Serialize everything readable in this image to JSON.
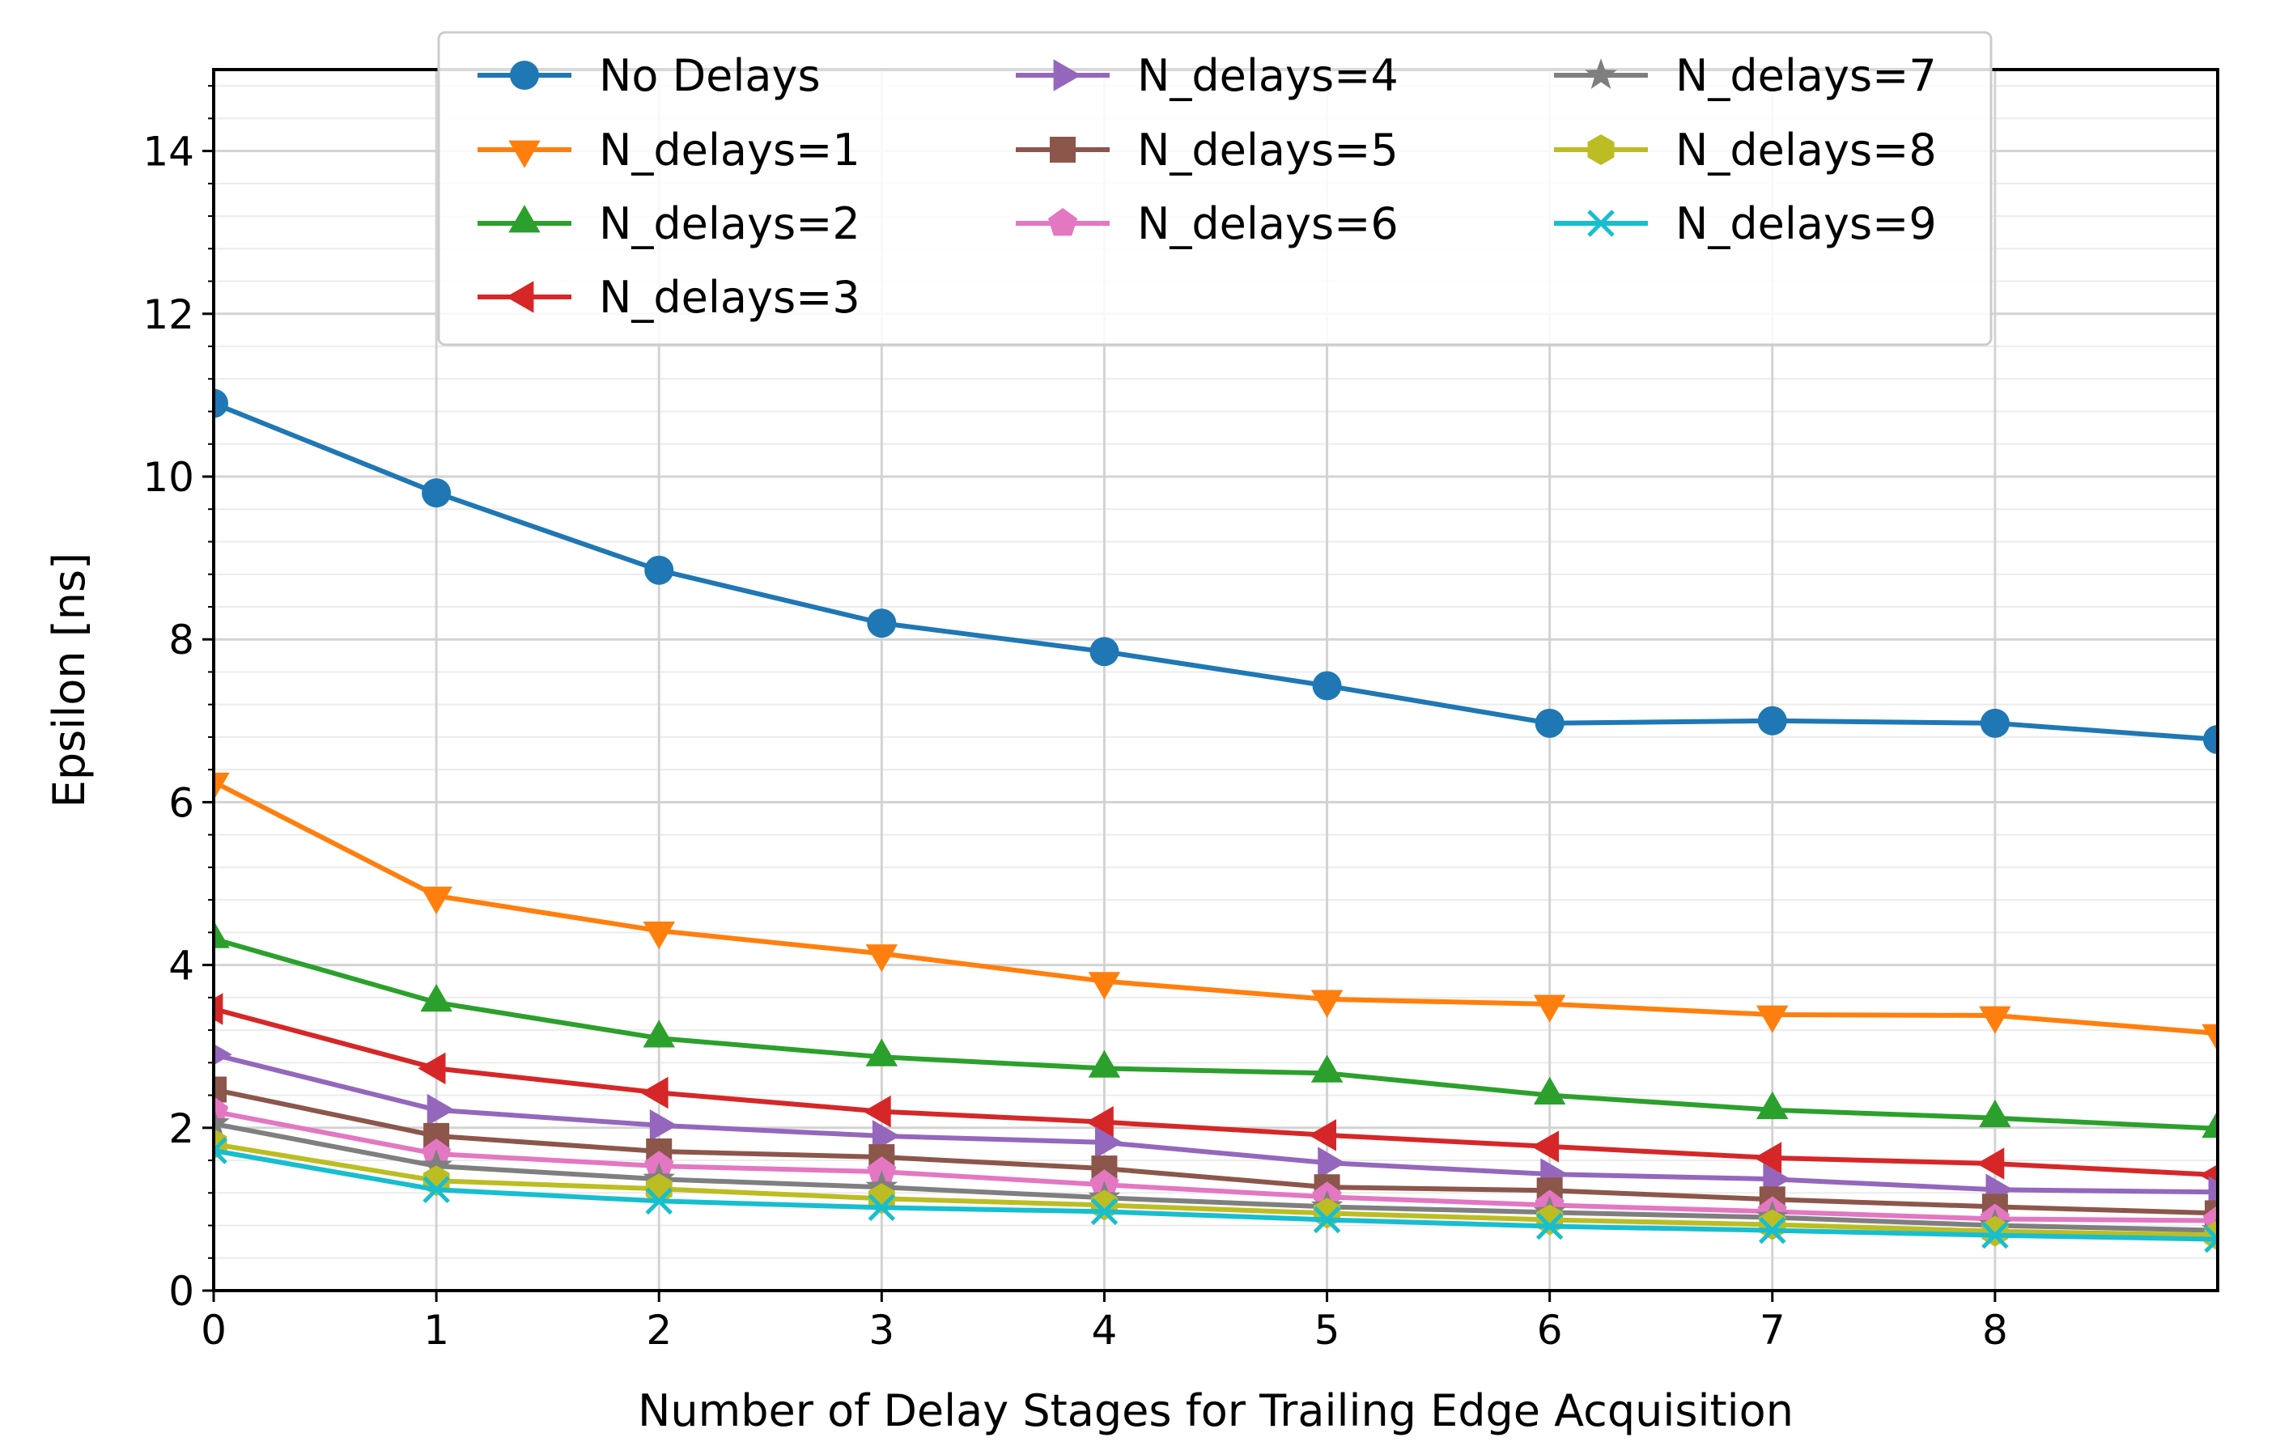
{
  "chart_data": {
    "type": "line",
    "title": "",
    "xlabel": "Number of Delay Stages for Trailing Edge Acquisition",
    "ylabel": "Epsilon [ns]",
    "xlim": [
      0,
      9
    ],
    "ylim": [
      0,
      15
    ],
    "xticks": [
      "0",
      "1",
      "2",
      "3",
      "4",
      "5",
      "6",
      "7",
      "8"
    ],
    "yticks": [
      "0",
      "2",
      "4",
      "6",
      "8",
      "10",
      "12",
      "14"
    ],
    "grid": true,
    "legend_position": "top-center",
    "x": [
      0,
      1,
      2,
      3,
      4,
      5,
      6,
      7,
      8,
      9
    ],
    "series": [
      {
        "name": "No Delays",
        "color": "#1f77b4",
        "marker": "circle",
        "values": [
          10.9,
          9.8,
          8.85,
          8.2,
          7.85,
          7.43,
          6.97,
          7.0,
          6.97,
          6.77
        ]
      },
      {
        "name": "N_delays=1",
        "color": "#ff7f0e",
        "marker": "triangle-down",
        "values": [
          6.25,
          4.85,
          4.42,
          4.14,
          3.8,
          3.58,
          3.52,
          3.39,
          3.38,
          3.16
        ]
      },
      {
        "name": "N_delays=2",
        "color": "#2ca02c",
        "marker": "triangle-up",
        "values": [
          4.32,
          3.54,
          3.1,
          2.87,
          2.73,
          2.67,
          2.4,
          2.22,
          2.12,
          1.99
        ]
      },
      {
        "name": "N_delays=3",
        "color": "#d62728",
        "marker": "triangle-left",
        "values": [
          3.46,
          2.73,
          2.43,
          2.2,
          2.07,
          1.91,
          1.77,
          1.63,
          1.56,
          1.42
        ]
      },
      {
        "name": "N_delays=4",
        "color": "#9467bd",
        "marker": "triangle-right",
        "values": [
          2.9,
          2.22,
          2.03,
          1.9,
          1.82,
          1.57,
          1.43,
          1.37,
          1.24,
          1.21
        ]
      },
      {
        "name": "N_delays=5",
        "color": "#8c564b",
        "marker": "square",
        "values": [
          2.47,
          1.9,
          1.71,
          1.64,
          1.5,
          1.27,
          1.23,
          1.12,
          1.03,
          0.95
        ]
      },
      {
        "name": "N_delays=6",
        "color": "#e377c2",
        "marker": "pentagon",
        "values": [
          2.2,
          1.68,
          1.53,
          1.46,
          1.3,
          1.15,
          1.05,
          0.97,
          0.88,
          0.86
        ]
      },
      {
        "name": "N_delays=7",
        "color": "#7f7f7f",
        "marker": "star",
        "values": [
          2.05,
          1.53,
          1.37,
          1.27,
          1.14,
          1.03,
          0.96,
          0.9,
          0.8,
          0.74
        ]
      },
      {
        "name": "N_delays=8",
        "color": "#bcbd22",
        "marker": "hexagon",
        "values": [
          1.8,
          1.35,
          1.25,
          1.13,
          1.05,
          0.95,
          0.87,
          0.81,
          0.73,
          0.68
        ]
      },
      {
        "name": "N_delays=9",
        "color": "#17becf",
        "marker": "x",
        "values": [
          1.72,
          1.24,
          1.1,
          1.02,
          0.97,
          0.87,
          0.79,
          0.74,
          0.68,
          0.63
        ]
      }
    ]
  }
}
